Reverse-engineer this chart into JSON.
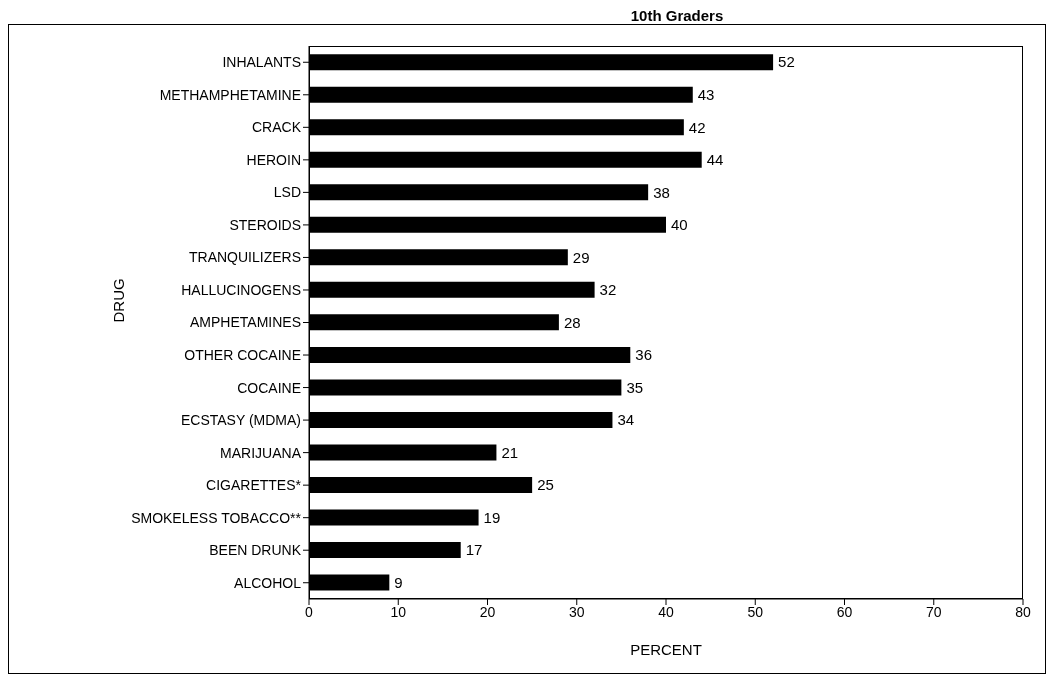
{
  "chart_data": {
    "type": "bar",
    "orientation": "horizontal",
    "title": "10th Graders",
    "xlabel": "PERCENT",
    "ylabel": "DRUG",
    "categories": [
      "INHALANTS",
      "METHAMPHETAMINE",
      "CRACK",
      "HEROIN",
      "LSD",
      "STEROIDS",
      "TRANQUILIZERS",
      "HALLUCINOGENS",
      "AMPHETAMINES",
      "OTHER COCAINE",
      "COCAINE",
      "ECSTASY (MDMA)",
      "MARIJUANA",
      "CIGARETTES*",
      "SMOKELESS TOBACCO**",
      "BEEN DRUNK",
      "ALCOHOL"
    ],
    "values": [
      52,
      43,
      42,
      44,
      38,
      40,
      29,
      32,
      28,
      36,
      35,
      34,
      21,
      25,
      19,
      17,
      9
    ],
    "color": "#000000",
    "xlim": [
      0,
      80
    ],
    "xticks": [
      0,
      10,
      20,
      30,
      40,
      50,
      60,
      70,
      80
    ],
    "data_labels": true,
    "grid": false,
    "legend": false
  }
}
